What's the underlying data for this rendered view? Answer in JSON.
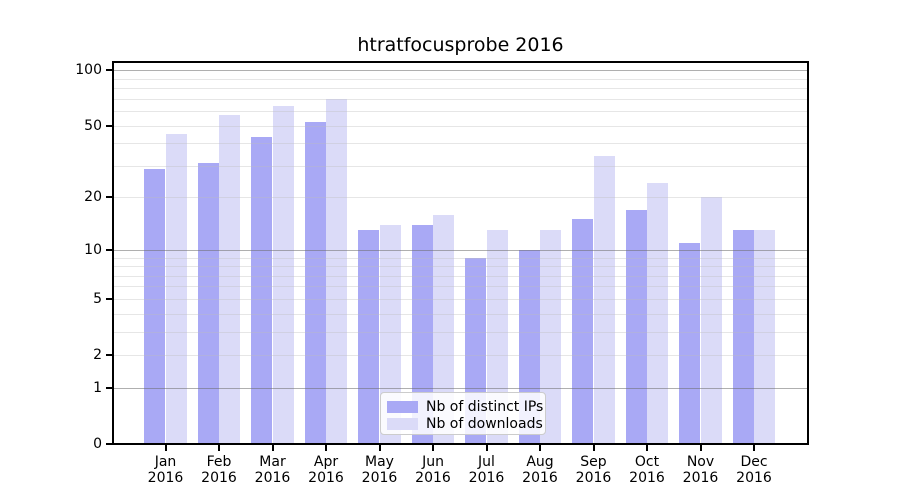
{
  "title": "htratfocusprobe 2016",
  "legend": {
    "items": [
      {
        "label": "Nb of distinct IPs",
        "color": "#a9a9f5"
      },
      {
        "label": "Nb of downloads",
        "color": "#dbdbf8"
      }
    ],
    "position": "lower center"
  },
  "chart_data": {
    "type": "bar",
    "title": "htratfocusprobe 2016",
    "categories": [
      "Jan",
      "Feb",
      "Mar",
      "Apr",
      "May",
      "Jun",
      "Jul",
      "Aug",
      "Sep",
      "Oct",
      "Nov",
      "Dec"
    ],
    "x_sublabel": "2016",
    "series": [
      {
        "name": "Nb of distinct IPs",
        "color": "#a9a9f5",
        "values": [
          29,
          31,
          43,
          52,
          13,
          14,
          9,
          10,
          15,
          17,
          11,
          13
        ]
      },
      {
        "name": "Nb of downloads",
        "color": "#dbdbf8",
        "values": [
          45,
          57,
          64,
          70,
          14,
          16,
          13,
          13,
          34,
          24,
          20,
          13
        ]
      }
    ],
    "xlabel": "",
    "ylabel": "",
    "yscale": "log1p",
    "ylim": [
      0,
      110
    ],
    "yticks": [
      0,
      1,
      2,
      5,
      10,
      20,
      50,
      100
    ],
    "major_gridlines": [
      1,
      10,
      100
    ],
    "minor_gridlines": [
      2,
      3,
      4,
      5,
      6,
      7,
      8,
      9,
      20,
      30,
      40,
      50,
      60,
      70,
      80,
      90
    ],
    "grid": "on",
    "legend_position": "lower center"
  }
}
